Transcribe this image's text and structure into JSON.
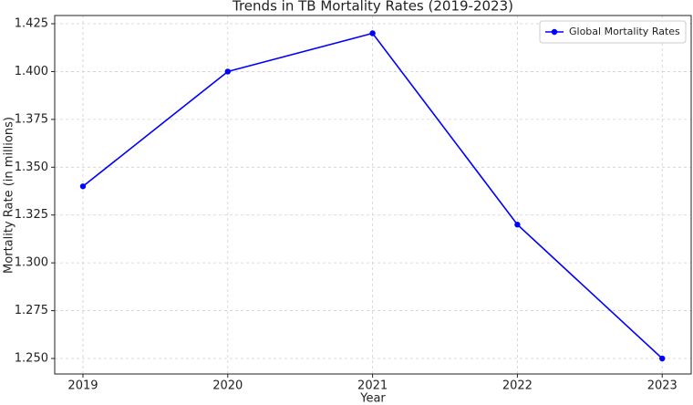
{
  "chart_data": {
    "type": "line",
    "title": "Trends in TB Mortality Rates (2019-2023)",
    "xlabel": "Year",
    "ylabel": "Mortality Rate (in millions)",
    "x": [
      2019,
      2020,
      2021,
      2022,
      2023
    ],
    "series": [
      {
        "name": "Global Mortality Rates",
        "color": "#0000ff",
        "values": [
          1.34,
          1.4,
          1.42,
          1.32,
          1.25
        ]
      }
    ],
    "xlim": [
      2018.805,
      2023.2
    ],
    "xticks": [
      2019,
      2020,
      2021,
      2022,
      2023
    ],
    "ylim": [
      1.2419,
      1.4293
    ],
    "yticks": [
      {
        "value": 1.25,
        "label": "1.250"
      },
      {
        "value": 1.275,
        "label": "1.275"
      },
      {
        "value": 1.3,
        "label": "1.300"
      },
      {
        "value": 1.325,
        "label": "1.325"
      },
      {
        "value": 1.35,
        "label": "1.350"
      },
      {
        "value": 1.375,
        "label": "1.375"
      },
      {
        "value": 1.4,
        "label": "1.400"
      },
      {
        "value": 1.425,
        "label": "1.425"
      }
    ],
    "grid": true,
    "legend": "upper right"
  }
}
